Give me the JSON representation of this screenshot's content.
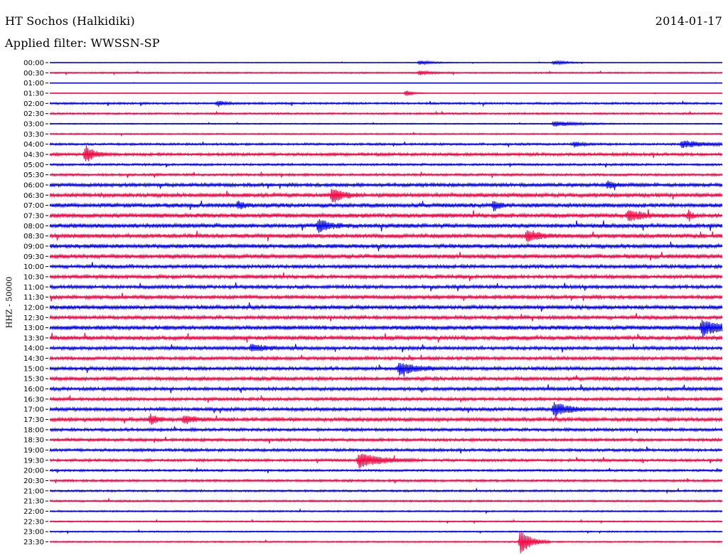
{
  "header": {
    "station": "HT Sochos (Halkidiki)",
    "filter": "Applied filter: WWSSN-SP",
    "date": "2014-01-17"
  },
  "chart_data": {
    "type": "line",
    "title": "HT Sochos (Halkidiki)",
    "subtitle": "Applied filter: WWSSN-SP",
    "date": "2014-01-17",
    "ylabel": "HHZ - 50000",
    "xlabel": "",
    "grid": false,
    "legend": "none",
    "colors": {
      "even_hour": "#0000ff",
      "half_hour": "#ff0040",
      "axis": "#000000"
    },
    "time_labels": [
      "00:00",
      "00:30",
      "01:00",
      "01:30",
      "02:00",
      "02:30",
      "03:00",
      "03:30",
      "04:00",
      "04:30",
      "05:00",
      "05:30",
      "06:00",
      "06:30",
      "07:00",
      "07:30",
      "08:00",
      "08:30",
      "09:00",
      "09:30",
      "10:00",
      "10:30",
      "11:00",
      "11:30",
      "12:00",
      "12:30",
      "13:00",
      "13:30",
      "14:00",
      "14:30",
      "15:00",
      "15:30",
      "16:00",
      "16:30",
      "17:00",
      "17:30",
      "18:00",
      "18:30",
      "19:00",
      "19:30",
      "20:00",
      "20:30",
      "21:00",
      "21:30",
      "22:00",
      "22:30",
      "23:00",
      "23:30"
    ],
    "noise_level": [
      0.3,
      0.6,
      0.2,
      0.3,
      0.9,
      0.8,
      0.5,
      0.6,
      1.0,
      1.3,
      1.0,
      1.1,
      1.6,
      1.8,
      2.0,
      2.0,
      2.0,
      1.9,
      1.9,
      1.9,
      1.6,
      1.6,
      1.6,
      1.6,
      1.8,
      1.6,
      2.0,
      1.8,
      1.6,
      1.5,
      1.6,
      1.6,
      1.6,
      1.4,
      1.6,
      1.7,
      1.4,
      1.3,
      1.3,
      1.2,
      1.0,
      1.0,
      0.9,
      0.8,
      0.7,
      0.6,
      0.6,
      0.6
    ],
    "events": [
      {
        "trace": "00:00",
        "t": 0.55,
        "amp": 3,
        "dur": 0.02
      },
      {
        "trace": "00:00",
        "t": 0.75,
        "amp": 3,
        "dur": 0.02
      },
      {
        "trace": "00:30",
        "t": 0.55,
        "amp": 3,
        "dur": 0.015
      },
      {
        "trace": "01:30",
        "t": 0.53,
        "amp": 4,
        "dur": 0.01
      },
      {
        "trace": "02:00",
        "t": 0.25,
        "amp": 4,
        "dur": 0.01
      },
      {
        "trace": "03:00",
        "t": 0.75,
        "amp": 4,
        "dur": 0.03
      },
      {
        "trace": "04:00",
        "t": 0.78,
        "amp": 4,
        "dur": 0.01
      },
      {
        "trace": "04:00",
        "t": 0.94,
        "amp": 5,
        "dur": 0.03
      },
      {
        "trace": "04:30",
        "t": 0.053,
        "amp": 13,
        "dur": 0.012
      },
      {
        "trace": "06:00",
        "t": 0.83,
        "amp": 5,
        "dur": 0.01
      },
      {
        "trace": "06:30",
        "t": 0.42,
        "amp": 11,
        "dur": 0.015
      },
      {
        "trace": "07:00",
        "t": 0.28,
        "amp": 5,
        "dur": 0.01
      },
      {
        "trace": "07:00",
        "t": 0.66,
        "amp": 6,
        "dur": 0.01
      },
      {
        "trace": "07:30",
        "t": 0.86,
        "amp": 7,
        "dur": 0.02
      },
      {
        "trace": "07:30",
        "t": 0.95,
        "amp": 7,
        "dur": 0.005
      },
      {
        "trace": "08:00",
        "t": 0.4,
        "amp": 9,
        "dur": 0.015
      },
      {
        "trace": "08:30",
        "t": 0.71,
        "amp": 9,
        "dur": 0.015
      },
      {
        "trace": "13:00",
        "t": 0.97,
        "amp": 10,
        "dur": 0.03
      },
      {
        "trace": "14:00",
        "t": 0.3,
        "amp": 5,
        "dur": 0.02
      },
      {
        "trace": "15:00",
        "t": 0.52,
        "amp": 8,
        "dur": 0.025
      },
      {
        "trace": "17:00",
        "t": 0.75,
        "amp": 10,
        "dur": 0.02
      },
      {
        "trace": "17:30",
        "t": 0.15,
        "amp": 7,
        "dur": 0.01
      },
      {
        "trace": "17:30",
        "t": 0.2,
        "amp": 6,
        "dur": 0.015
      },
      {
        "trace": "19:30",
        "t": 0.46,
        "amp": 11,
        "dur": 0.03
      },
      {
        "trace": "23:30",
        "t": 0.7,
        "amp": 18,
        "dur": 0.015
      }
    ]
  }
}
